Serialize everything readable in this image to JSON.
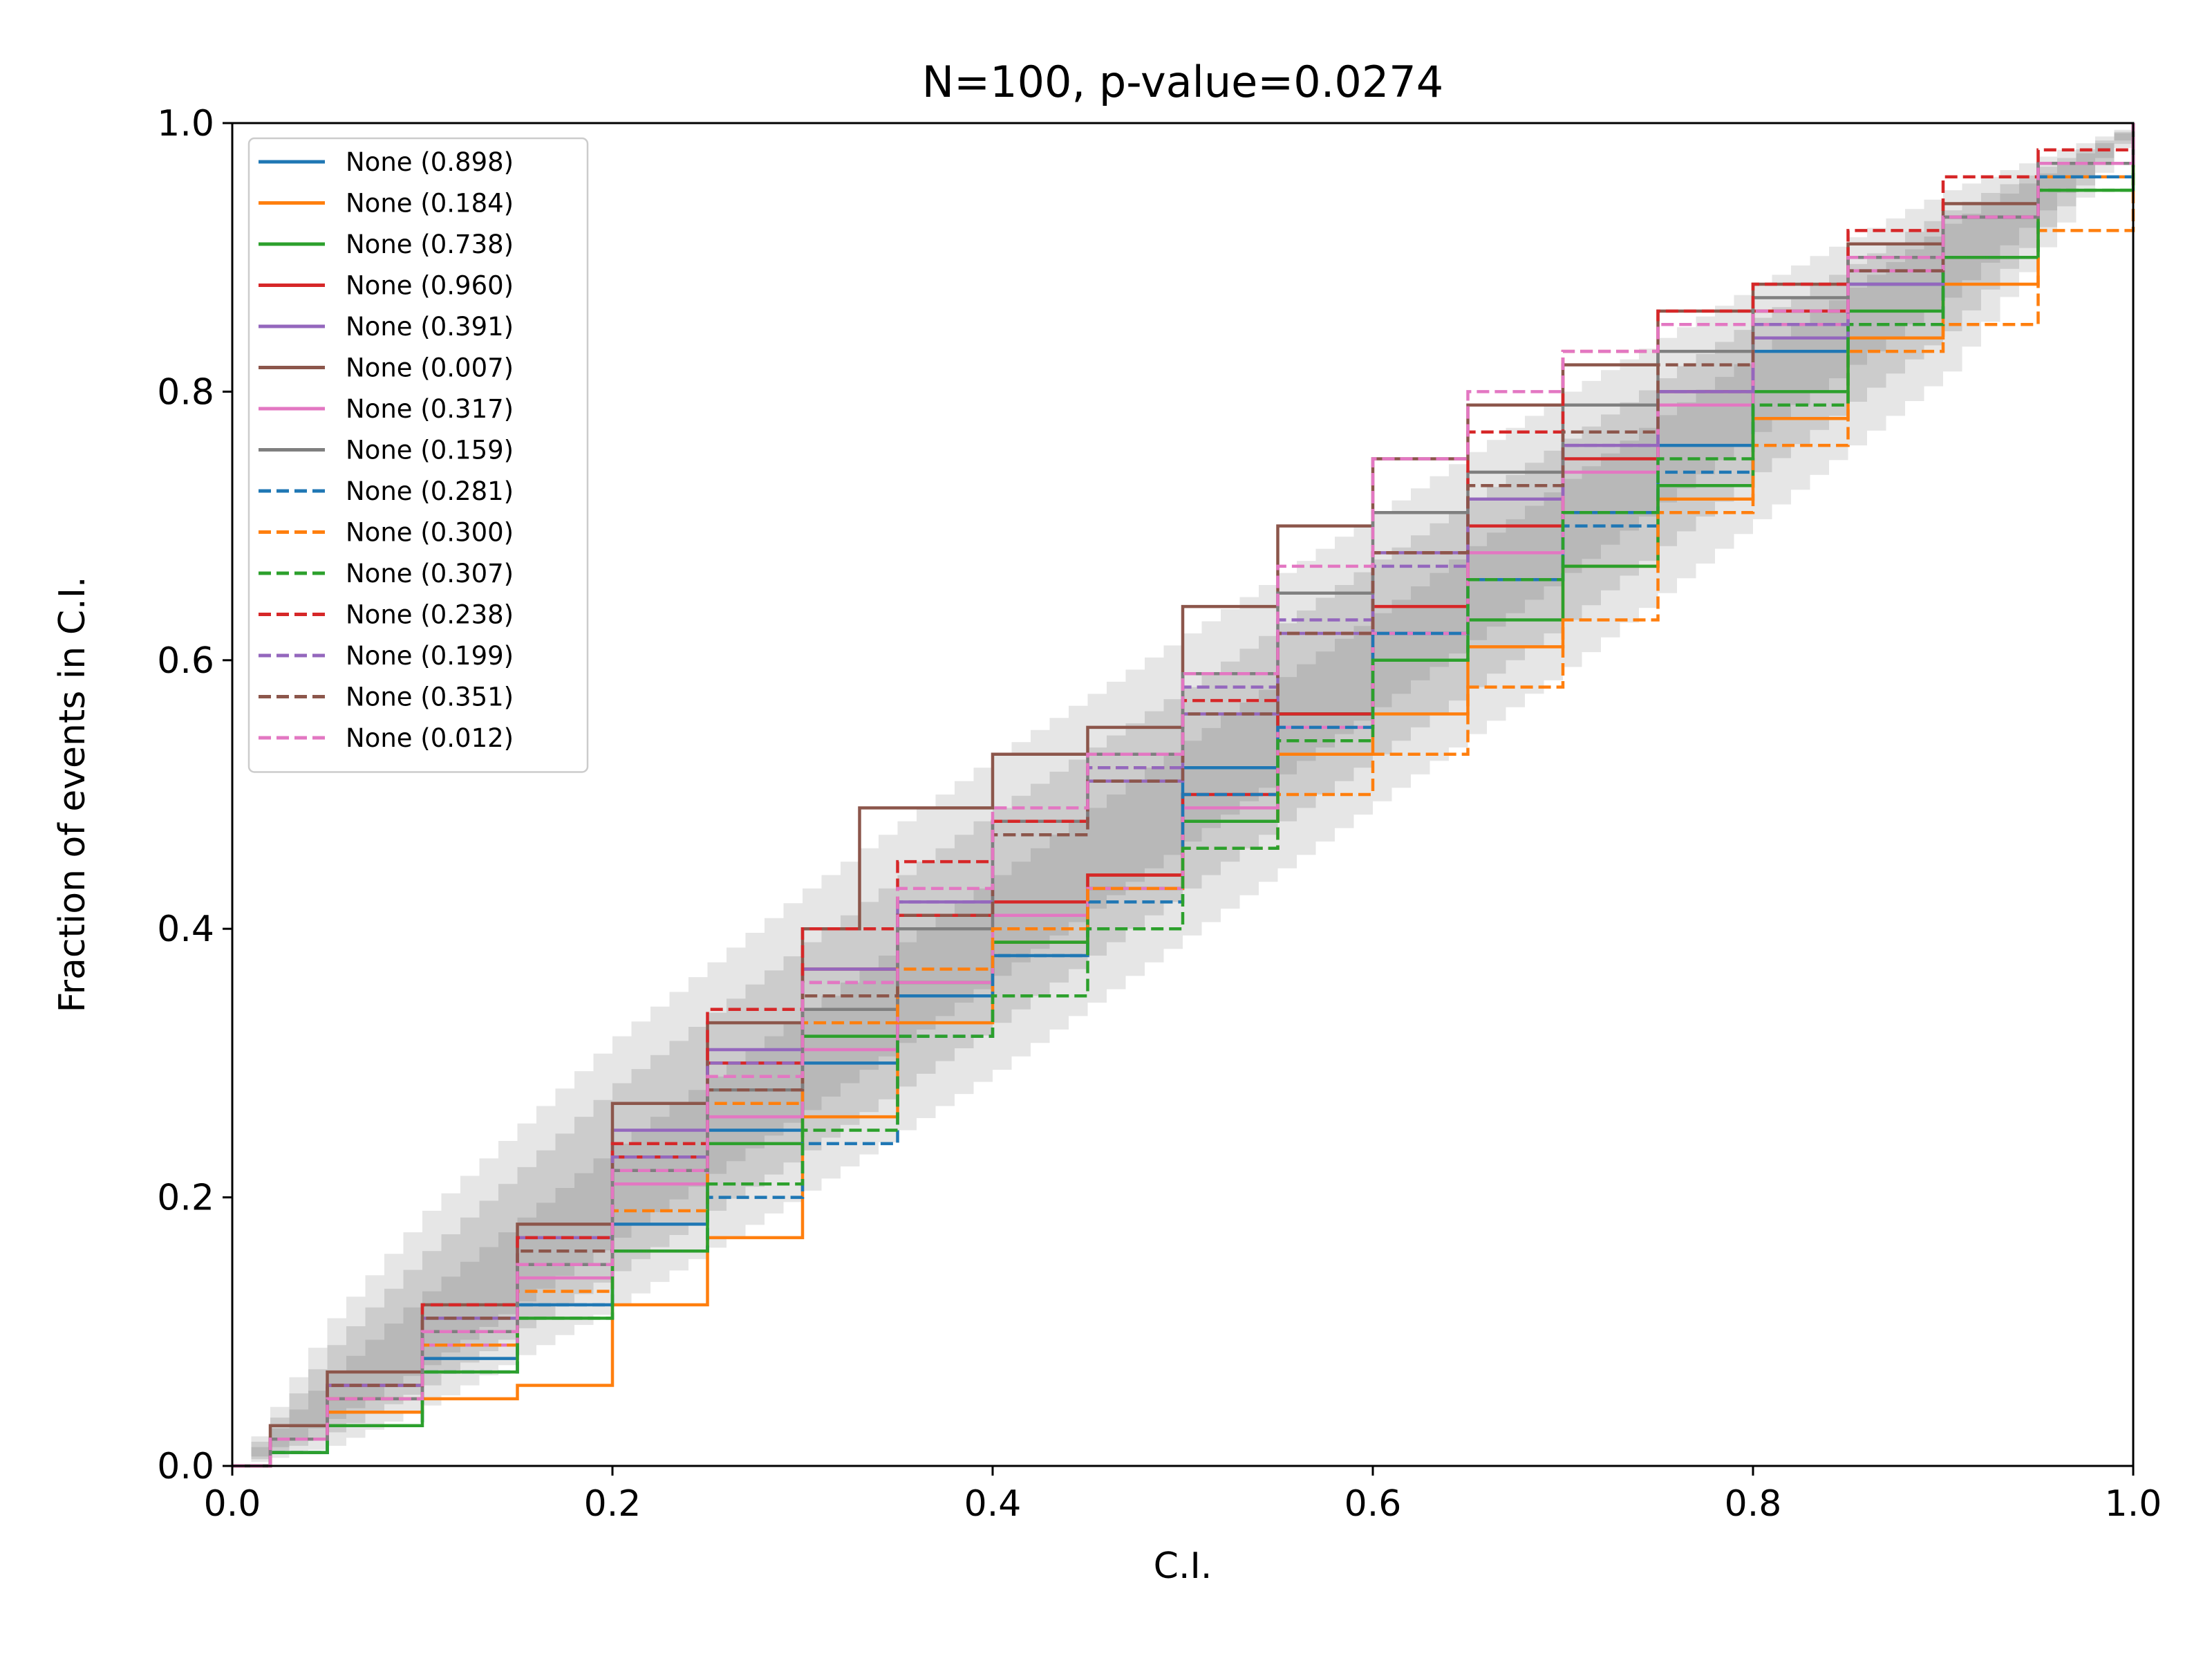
{
  "chart_data": {
    "type": "line",
    "title": "N=100, p-value=0.0274",
    "xlabel": "C.I.",
    "ylabel": "Fraction of events in C.I.",
    "xlim": [
      0.0,
      1.0
    ],
    "ylim": [
      0.0,
      1.0
    ],
    "x_ticks": [
      "0.0",
      "0.2",
      "0.4",
      "0.6",
      "0.8",
      "1.0"
    ],
    "y_ticks": [
      "0.0",
      "0.2",
      "0.4",
      "0.6",
      "0.8",
      "1.0"
    ],
    "grid": false,
    "legend_position": "top-left",
    "confidence_bands": [
      {
        "level": "outer",
        "color": "#e6e6e6",
        "points": [
          [
            0,
            0.0,
            0.0
          ],
          [
            0.05,
            0.015,
            0.11
          ],
          [
            0.1,
            0.045,
            0.19
          ],
          [
            0.2,
            0.12,
            0.32
          ],
          [
            0.3,
            0.205,
            0.43
          ],
          [
            0.4,
            0.295,
            0.53
          ],
          [
            0.5,
            0.395,
            0.62
          ],
          [
            0.6,
            0.495,
            0.71
          ],
          [
            0.7,
            0.595,
            0.8
          ],
          [
            0.8,
            0.705,
            0.88
          ],
          [
            0.9,
            0.815,
            0.95
          ],
          [
            1.0,
            1.0,
            1.0
          ]
        ]
      },
      {
        "level": "middle",
        "color": "#cccccc",
        "points": [
          [
            0,
            0.0,
            0.0
          ],
          [
            0.05,
            0.025,
            0.09
          ],
          [
            0.1,
            0.06,
            0.16
          ],
          [
            0.2,
            0.145,
            0.285
          ],
          [
            0.3,
            0.235,
            0.39
          ],
          [
            0.4,
            0.33,
            0.49
          ],
          [
            0.5,
            0.43,
            0.58
          ],
          [
            0.6,
            0.53,
            0.675
          ],
          [
            0.7,
            0.63,
            0.765
          ],
          [
            0.8,
            0.74,
            0.855
          ],
          [
            0.9,
            0.845,
            0.935
          ],
          [
            1.0,
            1.0,
            1.0
          ]
        ]
      },
      {
        "level": "inner",
        "color": "#b8b8b8",
        "points": [
          [
            0,
            0.0,
            0.0
          ],
          [
            0.05,
            0.035,
            0.07
          ],
          [
            0.1,
            0.075,
            0.13
          ],
          [
            0.2,
            0.17,
            0.24
          ],
          [
            0.3,
            0.265,
            0.34
          ],
          [
            0.4,
            0.365,
            0.44
          ],
          [
            0.5,
            0.465,
            0.54
          ],
          [
            0.6,
            0.565,
            0.635
          ],
          [
            0.7,
            0.665,
            0.735
          ],
          [
            0.8,
            0.77,
            0.83
          ],
          [
            0.9,
            0.87,
            0.925
          ],
          [
            1.0,
            1.0,
            1.0
          ]
        ]
      }
    ],
    "series": [
      {
        "name": "None (0.898)",
        "color": "#1f77b4",
        "dash": "solid",
        "x": [
          0,
          0.02,
          0.05,
          0.1,
          0.15,
          0.2,
          0.25,
          0.3,
          0.35,
          0.4,
          0.45,
          0.5,
          0.55,
          0.6,
          0.65,
          0.7,
          0.75,
          0.8,
          0.85,
          0.9,
          0.95,
          1.0
        ],
        "y": [
          0,
          0.01,
          0.04,
          0.08,
          0.12,
          0.18,
          0.25,
          0.3,
          0.35,
          0.38,
          0.44,
          0.52,
          0.56,
          0.62,
          0.66,
          0.71,
          0.76,
          0.83,
          0.88,
          0.93,
          0.97,
          1.0
        ]
      },
      {
        "name": "None (0.184)",
        "color": "#ff7f0e",
        "dash": "solid",
        "x": [
          0,
          0.02,
          0.05,
          0.1,
          0.15,
          0.2,
          0.25,
          0.3,
          0.35,
          0.4,
          0.45,
          0.5,
          0.55,
          0.6,
          0.65,
          0.7,
          0.75,
          0.8,
          0.85,
          0.9,
          0.95,
          1.0
        ],
        "y": [
          0,
          0.02,
          0.04,
          0.05,
          0.06,
          0.12,
          0.17,
          0.26,
          0.33,
          0.39,
          0.44,
          0.48,
          0.53,
          0.56,
          0.61,
          0.67,
          0.72,
          0.78,
          0.84,
          0.88,
          0.96,
          1.0
        ]
      },
      {
        "name": "None (0.738)",
        "color": "#2ca02c",
        "dash": "solid",
        "x": [
          0,
          0.02,
          0.05,
          0.1,
          0.15,
          0.2,
          0.25,
          0.3,
          0.35,
          0.4,
          0.45,
          0.5,
          0.55,
          0.6,
          0.65,
          0.7,
          0.75,
          0.8,
          0.85,
          0.9,
          0.95,
          1.0
        ],
        "y": [
          0,
          0.01,
          0.03,
          0.07,
          0.11,
          0.16,
          0.24,
          0.32,
          0.36,
          0.39,
          0.43,
          0.48,
          0.56,
          0.6,
          0.63,
          0.67,
          0.73,
          0.8,
          0.86,
          0.9,
          0.95,
          1.0
        ]
      },
      {
        "name": "None (0.960)",
        "color": "#d62728",
        "dash": "solid",
        "x": [
          0,
          0.02,
          0.05,
          0.1,
          0.15,
          0.2,
          0.25,
          0.3,
          0.35,
          0.4,
          0.45,
          0.5,
          0.55,
          0.6,
          0.65,
          0.7,
          0.75,
          0.8,
          0.85,
          0.9,
          0.95,
          1.0
        ],
        "y": [
          0,
          0.02,
          0.06,
          0.1,
          0.15,
          0.23,
          0.3,
          0.37,
          0.41,
          0.42,
          0.44,
          0.5,
          0.56,
          0.64,
          0.7,
          0.75,
          0.8,
          0.86,
          0.9,
          0.93,
          0.97,
          1.0
        ]
      },
      {
        "name": "None (0.391)",
        "color": "#9467bd",
        "dash": "solid",
        "x": [
          0,
          0.02,
          0.05,
          0.1,
          0.15,
          0.2,
          0.25,
          0.3,
          0.35,
          0.4,
          0.45,
          0.5,
          0.55,
          0.6,
          0.65,
          0.7,
          0.75,
          0.8,
          0.85,
          0.9,
          0.95,
          1.0
        ],
        "y": [
          0,
          0.02,
          0.06,
          0.11,
          0.17,
          0.25,
          0.31,
          0.37,
          0.42,
          0.48,
          0.51,
          0.56,
          0.62,
          0.68,
          0.72,
          0.76,
          0.8,
          0.84,
          0.88,
          0.93,
          0.97,
          1.0
        ]
      },
      {
        "name": "None (0.007)",
        "color": "#8c564b",
        "dash": "solid",
        "x": [
          0,
          0.02,
          0.05,
          0.1,
          0.15,
          0.2,
          0.25,
          0.3,
          0.33,
          0.35,
          0.4,
          0.45,
          0.5,
          0.55,
          0.6,
          0.65,
          0.7,
          0.75,
          0.8,
          0.85,
          0.9,
          0.95,
          1.0
        ],
        "y": [
          0,
          0.03,
          0.07,
          0.12,
          0.18,
          0.27,
          0.33,
          0.4,
          0.49,
          0.49,
          0.53,
          0.55,
          0.64,
          0.7,
          0.75,
          0.79,
          0.82,
          0.86,
          0.88,
          0.91,
          0.94,
          0.97,
          1.0
        ]
      },
      {
        "name": "None (0.317)",
        "color": "#e377c2",
        "dash": "solid",
        "x": [
          0,
          0.02,
          0.05,
          0.1,
          0.15,
          0.2,
          0.25,
          0.3,
          0.35,
          0.4,
          0.45,
          0.5,
          0.55,
          0.6,
          0.65,
          0.7,
          0.75,
          0.8,
          0.85,
          0.9,
          0.95,
          1.0
        ],
        "y": [
          0,
          0.02,
          0.05,
          0.09,
          0.14,
          0.21,
          0.26,
          0.31,
          0.36,
          0.41,
          0.43,
          0.49,
          0.55,
          0.62,
          0.68,
          0.74,
          0.79,
          0.85,
          0.89,
          0.93,
          0.97,
          1.0
        ]
      },
      {
        "name": "None (0.159)",
        "color": "#7f7f7f",
        "dash": "solid",
        "x": [
          0,
          0.02,
          0.05,
          0.1,
          0.15,
          0.2,
          0.25,
          0.3,
          0.35,
          0.4,
          0.45,
          0.5,
          0.55,
          0.6,
          0.65,
          0.7,
          0.75,
          0.8,
          0.85,
          0.9,
          0.95,
          1.0
        ],
        "y": [
          0,
          0.02,
          0.05,
          0.1,
          0.15,
          0.22,
          0.28,
          0.34,
          0.4,
          0.48,
          0.53,
          0.59,
          0.65,
          0.71,
          0.74,
          0.79,
          0.83,
          0.87,
          0.9,
          0.93,
          0.97,
          1.0
        ]
      },
      {
        "name": "None (0.281)",
        "color": "#1f77b4",
        "dash": "dashed",
        "x": [
          0,
          0.02,
          0.05,
          0.1,
          0.15,
          0.2,
          0.25,
          0.3,
          0.35,
          0.4,
          0.45,
          0.5,
          0.55,
          0.6,
          0.65,
          0.7,
          0.75,
          0.8,
          0.85,
          0.9,
          0.95,
          1.0
        ],
        "y": [
          0,
          0.01,
          0.03,
          0.07,
          0.12,
          0.16,
          0.2,
          0.24,
          0.32,
          0.38,
          0.42,
          0.5,
          0.55,
          0.62,
          0.66,
          0.7,
          0.74,
          0.79,
          0.85,
          0.9,
          0.96,
          1.0
        ]
      },
      {
        "name": "None (0.300)",
        "color": "#ff7f0e",
        "dash": "dashed",
        "x": [
          0,
          0.02,
          0.05,
          0.1,
          0.15,
          0.2,
          0.25,
          0.3,
          0.35,
          0.4,
          0.45,
          0.5,
          0.55,
          0.6,
          0.65,
          0.7,
          0.75,
          0.8,
          0.85,
          0.9,
          0.95,
          1.0
        ],
        "y": [
          0,
          0.02,
          0.05,
          0.09,
          0.13,
          0.19,
          0.27,
          0.33,
          0.37,
          0.4,
          0.43,
          0.46,
          0.5,
          0.53,
          0.58,
          0.63,
          0.71,
          0.76,
          0.83,
          0.85,
          0.92,
          1.0
        ]
      },
      {
        "name": "None (0.307)",
        "color": "#2ca02c",
        "dash": "dashed",
        "x": [
          0,
          0.02,
          0.05,
          0.1,
          0.15,
          0.2,
          0.25,
          0.3,
          0.35,
          0.4,
          0.45,
          0.5,
          0.55,
          0.6,
          0.65,
          0.7,
          0.75,
          0.8,
          0.85,
          0.9,
          0.95,
          1.0
        ],
        "y": [
          0,
          0.01,
          0.03,
          0.07,
          0.11,
          0.16,
          0.21,
          0.25,
          0.32,
          0.35,
          0.4,
          0.46,
          0.54,
          0.6,
          0.66,
          0.71,
          0.75,
          0.79,
          0.85,
          0.9,
          0.95,
          1.0
        ]
      },
      {
        "name": "None (0.238)",
        "color": "#d62728",
        "dash": "dashed",
        "x": [
          0,
          0.02,
          0.05,
          0.1,
          0.15,
          0.2,
          0.25,
          0.3,
          0.35,
          0.4,
          0.45,
          0.5,
          0.55,
          0.6,
          0.65,
          0.7,
          0.75,
          0.8,
          0.85,
          0.9,
          0.95,
          1.0
        ],
        "y": [
          0,
          0.02,
          0.06,
          0.12,
          0.17,
          0.24,
          0.34,
          0.4,
          0.45,
          0.48,
          0.52,
          0.57,
          0.62,
          0.68,
          0.77,
          0.83,
          0.86,
          0.88,
          0.92,
          0.96,
          0.98,
          1.0
        ]
      },
      {
        "name": "None (0.199)",
        "color": "#9467bd",
        "dash": "dashed",
        "x": [
          0,
          0.02,
          0.05,
          0.1,
          0.15,
          0.2,
          0.25,
          0.3,
          0.35,
          0.4,
          0.45,
          0.5,
          0.55,
          0.6,
          0.65,
          0.7,
          0.75,
          0.8,
          0.85,
          0.9,
          0.95,
          1.0
        ],
        "y": [
          0,
          0.02,
          0.06,
          0.11,
          0.16,
          0.23,
          0.3,
          0.36,
          0.42,
          0.47,
          0.52,
          0.58,
          0.63,
          0.67,
          0.72,
          0.76,
          0.8,
          0.85,
          0.89,
          0.93,
          0.97,
          1.0
        ]
      },
      {
        "name": "None (0.351)",
        "color": "#8c564b",
        "dash": "dashed",
        "x": [
          0,
          0.02,
          0.05,
          0.1,
          0.15,
          0.2,
          0.25,
          0.3,
          0.35,
          0.4,
          0.45,
          0.5,
          0.55,
          0.6,
          0.65,
          0.7,
          0.75,
          0.8,
          0.85,
          0.9,
          0.95,
          1.0
        ],
        "y": [
          0,
          0.02,
          0.06,
          0.11,
          0.16,
          0.22,
          0.28,
          0.35,
          0.41,
          0.47,
          0.51,
          0.56,
          0.62,
          0.68,
          0.73,
          0.77,
          0.82,
          0.86,
          0.89,
          0.93,
          0.97,
          1.0
        ]
      },
      {
        "name": "None (0.012)",
        "color": "#e377c2",
        "dash": "dashed",
        "x": [
          0,
          0.02,
          0.05,
          0.1,
          0.15,
          0.2,
          0.25,
          0.3,
          0.35,
          0.4,
          0.45,
          0.5,
          0.55,
          0.6,
          0.65,
          0.7,
          0.75,
          0.8,
          0.85,
          0.9,
          0.95,
          1.0
        ],
        "y": [
          0,
          0.02,
          0.05,
          0.1,
          0.15,
          0.22,
          0.29,
          0.36,
          0.43,
          0.49,
          0.53,
          0.59,
          0.67,
          0.75,
          0.8,
          0.83,
          0.85,
          0.86,
          0.9,
          0.93,
          0.97,
          1.0
        ]
      }
    ]
  }
}
